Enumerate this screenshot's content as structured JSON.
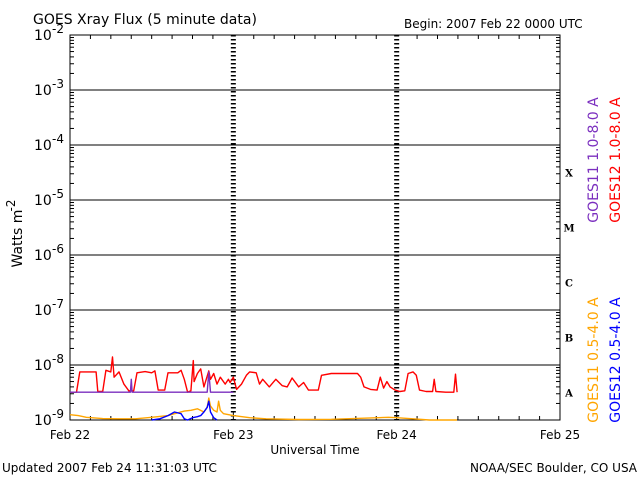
{
  "header": {
    "title": "GOES Xray Flux (5 minute data)",
    "begin": "Begin:  2007 Feb 22 0000 UTC"
  },
  "footer": {
    "updated": "Updated 2007 Feb 24 11:31:03 UTC",
    "source": "NOAA/SEC Boulder, CO USA"
  },
  "colors": {
    "goes11_long": "#7b2fbf",
    "goes12_long": "#ff0000",
    "goes11_short": "#ffa500",
    "goes12_short": "#0000ff",
    "grid": "#000000"
  },
  "chart_data": {
    "type": "line",
    "title": "GOES Xray Flux (5 minute data)",
    "xlabel": "Universal Time",
    "ylabel": "Watts m-2",
    "ylabel_base": "Watts m",
    "ylabel_exp": "-2",
    "yscale": "log",
    "ylim": [
      1e-09,
      0.01
    ],
    "xlim": [
      0,
      3
    ],
    "x_unit": "days since 2007 Feb 22 0000 UTC",
    "x_ticks": [
      {
        "x": 0,
        "label": "Feb 22"
      },
      {
        "x": 1,
        "label": "Feb 23"
      },
      {
        "x": 2,
        "label": "Feb 24"
      },
      {
        "x": 3,
        "label": "Feb 25"
      }
    ],
    "y_ticks": [
      {
        "exp": -2,
        "label_base": "10",
        "label_exp": "-2"
      },
      {
        "exp": -3,
        "label_base": "10",
        "label_exp": "-3"
      },
      {
        "exp": -4,
        "label_base": "10",
        "label_exp": "-4"
      },
      {
        "exp": -5,
        "label_base": "10",
        "label_exp": "-5"
      },
      {
        "exp": -6,
        "label_base": "10",
        "label_exp": "-6"
      },
      {
        "exp": -7,
        "label_base": "10",
        "label_exp": "-7"
      },
      {
        "exp": -8,
        "label_base": "10",
        "label_exp": "-8"
      },
      {
        "exp": -9,
        "label_base": "10",
        "label_exp": "-9"
      }
    ],
    "flare_classes": [
      {
        "label": "X",
        "exp": -4
      },
      {
        "label": "M",
        "exp": -5
      },
      {
        "label": "C",
        "exp": -6
      },
      {
        "label": "B",
        "exp": -7
      },
      {
        "label": "A",
        "exp": -8
      }
    ],
    "grid_horizontal": true,
    "legend_placement": "right",
    "legend": [
      {
        "name": "GOES11 1.0-8.0 A",
        "color": "#7b2fbf",
        "group": "upper",
        "order": 0
      },
      {
        "name": "GOES12 1.0-8.0 A",
        "color": "#ff0000",
        "group": "upper",
        "order": 1
      },
      {
        "name": "GOES11 0.5-4.0 A",
        "color": "#ffa500",
        "group": "lower",
        "order": 0
      },
      {
        "name": "GOES12 0.5-4.0 A",
        "color": "#0000ff",
        "group": "lower",
        "order": 1
      }
    ],
    "series": [
      {
        "name": "GOES12 1.0-8.0 A",
        "color": "#ff0000",
        "points": [
          [
            0.0,
            3.2e-09
          ],
          [
            0.04,
            3.2e-09
          ],
          [
            0.06,
            7.5e-09
          ],
          [
            0.16,
            7.5e-09
          ],
          [
            0.17,
            3.3e-09
          ],
          [
            0.2,
            3.3e-09
          ],
          [
            0.22,
            8e-09
          ],
          [
            0.25,
            7.5e-09
          ],
          [
            0.26,
            1.4e-08
          ],
          [
            0.27,
            6e-09
          ],
          [
            0.3,
            7.5e-09
          ],
          [
            0.33,
            4.5e-09
          ],
          [
            0.36,
            3.4e-09
          ],
          [
            0.39,
            3.4e-09
          ],
          [
            0.41,
            7.2e-09
          ],
          [
            0.46,
            7.6e-09
          ],
          [
            0.5,
            7.2e-09
          ],
          [
            0.52,
            7.8e-09
          ],
          [
            0.54,
            3.5e-09
          ],
          [
            0.58,
            3.5e-09
          ],
          [
            0.6,
            7.2e-09
          ],
          [
            0.66,
            7.2e-09
          ],
          [
            0.68,
            8e-09
          ],
          [
            0.7,
            5.5e-09
          ],
          [
            0.72,
            3.2e-09
          ],
          [
            0.74,
            3.4e-09
          ],
          [
            0.755,
            1.2e-08
          ],
          [
            0.76,
            5e-09
          ],
          [
            0.78,
            7e-09
          ],
          [
            0.8,
            8.5e-09
          ],
          [
            0.82,
            4e-09
          ],
          [
            0.85,
            7.8e-09
          ],
          [
            0.86,
            5.5e-09
          ],
          [
            0.88,
            7e-09
          ],
          [
            0.9,
            4.5e-09
          ],
          [
            0.92,
            6e-09
          ],
          [
            0.95,
            4.5e-09
          ],
          [
            0.97,
            5.5e-09
          ],
          [
            0.98,
            4.8e-09
          ],
          [
            1.0,
            6e-09
          ],
          [
            1.02,
            3.6e-09
          ],
          [
            1.05,
            4.5e-09
          ],
          [
            1.08,
            6.5e-09
          ],
          [
            1.1,
            7.5e-09
          ],
          [
            1.14,
            7.2e-09
          ],
          [
            1.16,
            4.5e-09
          ],
          [
            1.18,
            5.5e-09
          ],
          [
            1.22,
            4e-09
          ],
          [
            1.26,
            5.5e-09
          ],
          [
            1.3,
            4.2e-09
          ],
          [
            1.33,
            4e-09
          ],
          [
            1.36,
            5.8e-09
          ],
          [
            1.4,
            4e-09
          ],
          [
            1.43,
            4.8e-09
          ],
          [
            1.46,
            3.5e-09
          ],
          [
            1.52,
            3.5e-09
          ],
          [
            1.54,
            6.5e-09
          ],
          [
            1.6,
            7e-09
          ],
          [
            1.7,
            7e-09
          ],
          [
            1.76,
            7e-09
          ],
          [
            1.78,
            6e-09
          ],
          [
            1.8,
            4e-09
          ],
          [
            1.84,
            3.6e-09
          ],
          [
            1.88,
            3.5e-09
          ],
          [
            1.9,
            6e-09
          ],
          [
            1.92,
            3.8e-09
          ],
          [
            1.94,
            5e-09
          ],
          [
            1.96,
            4e-09
          ],
          [
            1.99,
            3.5e-09
          ],
          [
            2.02,
            3.3e-09
          ],
          [
            2.05,
            3.4e-09
          ],
          [
            2.07,
            7e-09
          ],
          [
            2.1,
            7.5e-09
          ],
          [
            2.12,
            6.5e-09
          ],
          [
            2.14,
            3.5e-09
          ],
          [
            2.18,
            3.3e-09
          ],
          [
            2.22,
            3.3e-09
          ],
          [
            2.23,
            5.5e-09
          ],
          [
            2.24,
            3.3e-09
          ],
          [
            2.3,
            3.2e-09
          ],
          [
            2.35,
            3.2e-09
          ],
          [
            2.36,
            6.8e-09
          ],
          [
            2.37,
            3.2e-09
          ]
        ]
      },
      {
        "name": "GOES11 1.0-8.0 A",
        "color": "#7b2fbf",
        "points": [
          [
            0.0,
            3.2e-09
          ],
          [
            0.37,
            3.2e-09
          ],
          [
            0.375,
            5.5e-09
          ],
          [
            0.38,
            3.2e-09
          ],
          [
            0.84,
            3.2e-09
          ],
          [
            0.85,
            7.5e-09
          ],
          [
            0.86,
            3.2e-09
          ],
          [
            1.0,
            3.2e-09
          ]
        ]
      },
      {
        "name": "GOES11 0.5-4.0 A",
        "color": "#ffa500",
        "points": [
          [
            0.0,
            1.25e-09
          ],
          [
            0.05,
            1.2e-09
          ],
          [
            0.1,
            1.12e-09
          ],
          [
            0.2,
            1.06e-09
          ],
          [
            0.3,
            1.05e-09
          ],
          [
            0.4,
            1.05e-09
          ],
          [
            0.5,
            1.12e-09
          ],
          [
            0.6,
            1.2e-09
          ],
          [
            0.66,
            1.35e-09
          ],
          [
            0.7,
            1.45e-09
          ],
          [
            0.74,
            1.5e-09
          ],
          [
            0.78,
            1.6e-09
          ],
          [
            0.82,
            1.4e-09
          ],
          [
            0.84,
            1.7e-09
          ],
          [
            0.85,
            2.5e-09
          ],
          [
            0.86,
            1.8e-09
          ],
          [
            0.88,
            1.5e-09
          ],
          [
            0.9,
            1.4e-09
          ],
          [
            0.91,
            2.2e-09
          ],
          [
            0.92,
            1.5e-09
          ],
          [
            0.94,
            1.3e-09
          ],
          [
            1.0,
            1.2e-09
          ],
          [
            1.1,
            1.1e-09
          ],
          [
            1.2,
            1.05e-09
          ],
          [
            1.4,
            1.02e-09
          ],
          [
            1.6,
            1.03e-09
          ],
          [
            1.8,
            1.08e-09
          ],
          [
            1.95,
            1.12e-09
          ],
          [
            2.0,
            1.1e-09
          ],
          [
            2.1,
            1.05e-09
          ],
          [
            2.2,
            1e-09
          ],
          [
            2.37,
            1e-09
          ]
        ]
      },
      {
        "name": "GOES12 0.5-4.0 A",
        "color": "#0000ff",
        "points": [
          [
            0.5,
            1e-09
          ],
          [
            0.55,
            1.05e-09
          ],
          [
            0.6,
            1.2e-09
          ],
          [
            0.64,
            1.4e-09
          ],
          [
            0.68,
            1.3e-09
          ],
          [
            0.7,
            1.05e-09
          ],
          [
            0.72,
            1e-09
          ],
          [
            0.75,
            1.1e-09
          ],
          [
            0.78,
            1.15e-09
          ],
          [
            0.8,
            1.2e-09
          ],
          [
            0.82,
            1.4e-09
          ],
          [
            0.84,
            1.7e-09
          ],
          [
            0.85,
            2.2e-09
          ],
          [
            0.86,
            1.4e-09
          ],
          [
            0.88,
            1.1e-09
          ],
          [
            0.9,
            1e-09
          ]
        ]
      }
    ]
  }
}
